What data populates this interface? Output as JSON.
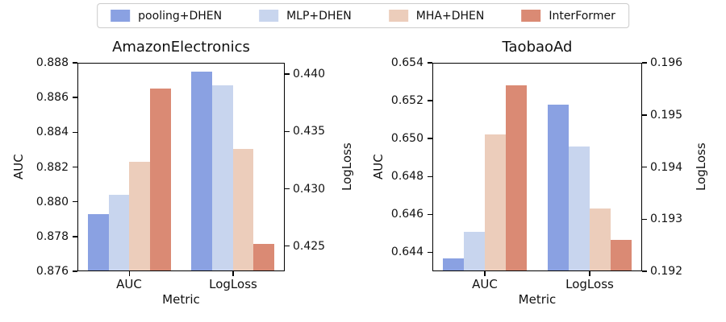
{
  "legend": {
    "items": [
      {
        "label": "pooling+DHEN",
        "color": "#8aa1e2"
      },
      {
        "label": "MLP+DHEN",
        "color": "#c8d5ee"
      },
      {
        "label": "MHA+DHEN",
        "color": "#eccdbb"
      },
      {
        "label": "InterFormer",
        "color": "#da8a74"
      }
    ]
  },
  "chart_data": [
    {
      "type": "bar",
      "title": "AmazonElectronics",
      "xlabel": "Metric",
      "categories": [
        "AUC",
        "LogLoss"
      ],
      "category_axis": [
        "left",
        "right"
      ],
      "grid": false,
      "left_axis": {
        "label": "AUC",
        "lim": [
          0.876,
          0.888
        ],
        "ticks": [
          "0.876",
          "0.878",
          "0.880",
          "0.882",
          "0.884",
          "0.886",
          "0.888"
        ]
      },
      "right_axis": {
        "label": "LogLoss",
        "lim": [
          0.4228,
          0.441
        ],
        "ticks": [
          "0.425",
          "0.430",
          "0.435",
          "0.440"
        ]
      },
      "series": [
        {
          "name": "pooling+DHEN",
          "values": [
            0.8793,
            0.4402
          ]
        },
        {
          "name": "MLP+DHEN",
          "values": [
            0.8804,
            0.439
          ]
        },
        {
          "name": "MHA+DHEN",
          "values": [
            0.8823,
            0.4335
          ]
        },
        {
          "name": "InterFormer",
          "values": [
            0.8865,
            0.4252
          ]
        }
      ]
    },
    {
      "type": "bar",
      "title": "TaobaoAd",
      "xlabel": "Metric",
      "categories": [
        "AUC",
        "LogLoss"
      ],
      "category_axis": [
        "left",
        "right"
      ],
      "grid": false,
      "left_axis": {
        "label": "AUC",
        "lim": [
          0.643,
          0.654
        ],
        "ticks": [
          "0.644",
          "0.646",
          "0.648",
          "0.650",
          "0.652",
          "0.654"
        ]
      },
      "right_axis": {
        "label": "LogLoss",
        "lim": [
          0.192,
          0.196
        ],
        "ticks": [
          "0.192",
          "0.193",
          "0.194",
          "0.195",
          "0.196"
        ]
      },
      "series": [
        {
          "name": "pooling+DHEN",
          "values": [
            0.6437,
            0.1952
          ]
        },
        {
          "name": "MLP+DHEN",
          "values": [
            0.6451,
            0.1944
          ]
        },
        {
          "name": "MHA+DHEN",
          "values": [
            0.6502,
            0.1932
          ]
        },
        {
          "name": "InterFormer",
          "values": [
            0.6528,
            0.1926
          ]
        }
      ]
    }
  ]
}
